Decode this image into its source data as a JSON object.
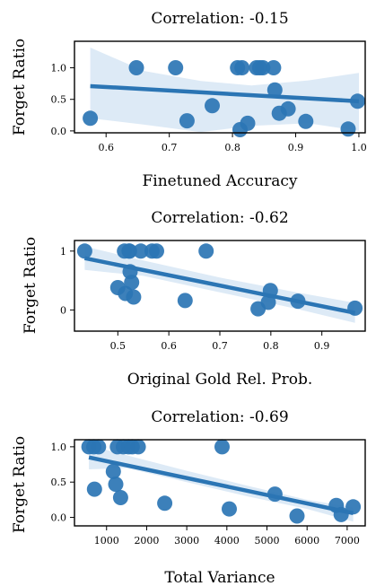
{
  "chart_data": [
    {
      "type": "scatter",
      "title": "Correlation: -0.15",
      "xlabel": "Finetuned Accuracy",
      "ylabel": "Forget Ratio",
      "xlim": [
        0.55,
        1.01
      ],
      "ylim": [
        -0.03,
        1.42
      ],
      "xticks": [
        0.6,
        0.7,
        0.8,
        0.9,
        1.0
      ],
      "xtick_labels": [
        "0.6",
        "0.7",
        "0.8",
        "0.9",
        "1.0"
      ],
      "yticks": [
        0.0,
        0.5,
        1.0
      ],
      "ytick_labels": [
        "0.0",
        "0.5",
        "1.0"
      ],
      "points": {
        "x": [
          0.575,
          0.648,
          0.71,
          0.728,
          0.768,
          0.808,
          0.812,
          0.815,
          0.824,
          0.838,
          0.843,
          0.848,
          0.865,
          0.867,
          0.874,
          0.888,
          0.916,
          0.983,
          0.998
        ],
        "y": [
          0.2,
          1.0,
          1.0,
          0.16,
          0.4,
          1.0,
          0.02,
          1.0,
          0.12,
          1.0,
          1.0,
          1.0,
          1.0,
          0.65,
          0.28,
          0.35,
          0.15,
          0.03,
          0.47
        ]
      },
      "fit": {
        "x": [
          0.575,
          1.0
        ],
        "y": [
          0.71,
          0.47
        ],
        "ci_lower": [
          0.2,
          0.1,
          -0.02,
          0.08,
          0.12,
          0.0
        ],
        "ci_upper": [
          1.32,
          0.95,
          0.79,
          0.72,
          0.8,
          0.92
        ],
        "ci_x": [
          0.575,
          0.66,
          0.75,
          0.83,
          0.92,
          1.0
        ]
      },
      "grid": false
    },
    {
      "type": "scatter",
      "title": "Correlation: -0.62",
      "xlabel": "Original Gold Rel. Prob.",
      "ylabel": "Forget Ratio",
      "xlim": [
        0.415,
        0.985
      ],
      "ylim": [
        -0.36,
        1.18
      ],
      "xticks": [
        0.5,
        0.6,
        0.7,
        0.8,
        0.9
      ],
      "xtick_labels": [
        "0.5",
        "0.6",
        "0.7",
        "0.8",
        "0.9"
      ],
      "yticks": [
        0,
        1
      ],
      "ytick_labels": [
        "0",
        "1"
      ],
      "points": {
        "x": [
          0.435,
          0.5,
          0.513,
          0.515,
          0.522,
          0.523,
          0.524,
          0.527,
          0.531,
          0.545,
          0.567,
          0.576,
          0.632,
          0.673,
          0.775,
          0.795,
          0.799,
          0.853,
          0.965
        ],
        "y": [
          1.0,
          0.38,
          1.0,
          0.28,
          1.0,
          1.0,
          0.65,
          0.47,
          0.22,
          1.0,
          1.0,
          1.0,
          0.16,
          1.0,
          0.02,
          0.13,
          0.33,
          0.15,
          0.03
        ]
      },
      "fit": {
        "x": [
          0.435,
          0.965
        ],
        "y": [
          0.88,
          -0.05
        ],
        "ci_x": [
          0.435,
          0.55,
          0.7,
          0.85,
          0.965
        ],
        "ci_lower": [
          0.68,
          0.58,
          0.3,
          0.02,
          -0.22
        ],
        "ci_upper": [
          1.08,
          0.84,
          0.55,
          0.3,
          0.12
        ]
      },
      "grid": false
    },
    {
      "type": "scatter",
      "title": "Correlation: -0.69",
      "xlabel": "Total Variance",
      "ylabel": "Forget Ratio",
      "xlim": [
        200,
        7450
      ],
      "ylim": [
        -0.12,
        1.1
      ],
      "xticks": [
        1000,
        2000,
        3000,
        4000,
        5000,
        6000,
        7000
      ],
      "xtick_labels": [
        "1000",
        "2000",
        "3000",
        "4000",
        "5000",
        "6000",
        "7000"
      ],
      "yticks": [
        0.0,
        0.5,
        1.0
      ],
      "ytick_labels": [
        "0.0",
        "0.5",
        "1.0"
      ],
      "points": {
        "x": [
          560,
          680,
          800,
          700,
          1170,
          1230,
          1270,
          1350,
          1420,
          1550,
          1640,
          1790,
          2450,
          3880,
          4060,
          5200,
          5750,
          6730,
          6850,
          7150
        ],
        "y": [
          1.0,
          1.0,
          1.0,
          0.4,
          0.65,
          0.47,
          1.0,
          0.28,
          1.0,
          1.0,
          1.0,
          1.0,
          0.2,
          1.0,
          0.12,
          0.33,
          0.02,
          0.17,
          0.04,
          0.15
        ]
      },
      "fit": {
        "x": [
          560,
          7150
        ],
        "y": [
          0.85,
          0.06
        ],
        "ci_x": [
          560,
          1500,
          3000,
          4500,
          6000,
          7150
        ],
        "ci_lower": [
          0.68,
          0.7,
          0.5,
          0.3,
          0.12,
          -0.06
        ],
        "ci_upper": [
          1.02,
          0.88,
          0.66,
          0.45,
          0.25,
          0.14
        ]
      },
      "grid": false
    }
  ]
}
